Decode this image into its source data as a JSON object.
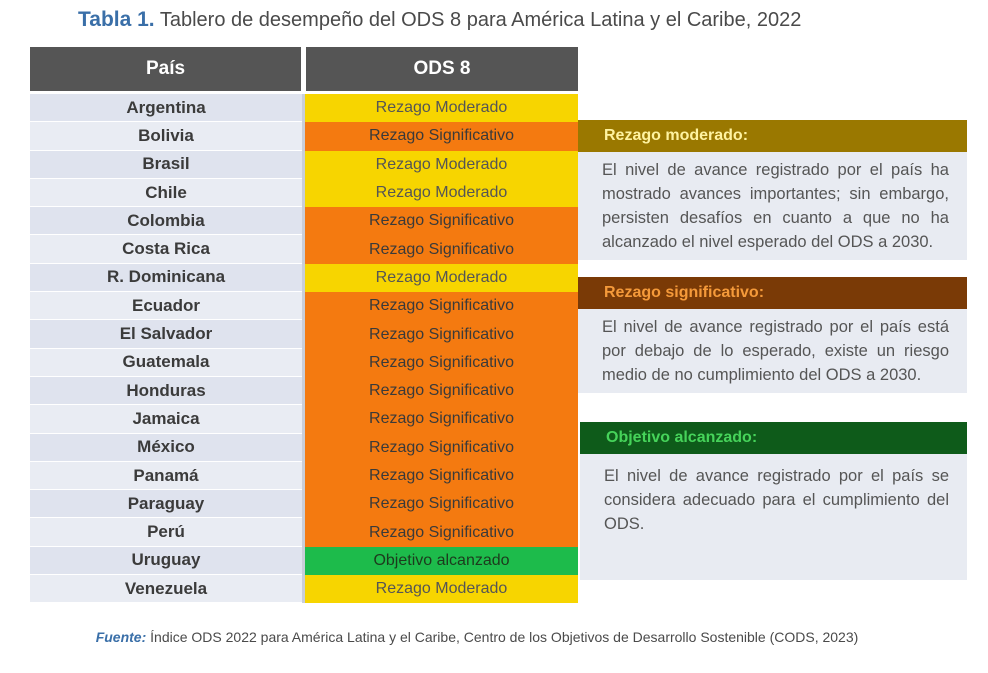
{
  "title": {
    "label": "Tabla 1.",
    "text": "Tablero de desempeño del ODS 8 para América Latina y el Caribe, 2022"
  },
  "table": {
    "headers": {
      "country": "País",
      "ods": "ODS 8"
    },
    "rows": [
      {
        "country": "Argentina",
        "status": "Rezago Moderado",
        "level": "moderado"
      },
      {
        "country": "Bolivia",
        "status": "Rezago Significativo",
        "level": "significativo"
      },
      {
        "country": "Brasil",
        "status": "Rezago Moderado",
        "level": "moderado"
      },
      {
        "country": "Chile",
        "status": "Rezago Moderado",
        "level": "moderado"
      },
      {
        "country": "Colombia",
        "status": "Rezago Significativo",
        "level": "significativo"
      },
      {
        "country": "Costa Rica",
        "status": "Rezago Significativo",
        "level": "significativo"
      },
      {
        "country": "R. Dominicana",
        "status": "Rezago Moderado",
        "level": "moderado"
      },
      {
        "country": "Ecuador",
        "status": "Rezago Significativo",
        "level": "significativo"
      },
      {
        "country": "El Salvador",
        "status": "Rezago Significativo",
        "level": "significativo"
      },
      {
        "country": "Guatemala",
        "status": "Rezago Significativo",
        "level": "significativo"
      },
      {
        "country": "Honduras",
        "status": "Rezago Significativo",
        "level": "significativo"
      },
      {
        "country": "Jamaica",
        "status": "Rezago Significativo",
        "level": "significativo"
      },
      {
        "country": "México",
        "status": "Rezago Significativo",
        "level": "significativo"
      },
      {
        "country": "Panamá",
        "status": "Rezago Significativo",
        "level": "significativo"
      },
      {
        "country": "Paraguay",
        "status": "Rezago Significativo",
        "level": "significativo"
      },
      {
        "country": "Perú",
        "status": "Rezago Significativo",
        "level": "significativo"
      },
      {
        "country": "Uruguay",
        "status": "Objetivo alcanzado",
        "level": "alcanzado"
      },
      {
        "country": "Venezuela",
        "status": "Rezago Moderado",
        "level": "moderado"
      }
    ]
  },
  "legend": {
    "moderado": {
      "title": "Rezago moderado:",
      "text": "El nivel de avance registrado por el país ha mostrado avances importantes; sin embargo, persisten desafíos en cuanto a que no ha alcanzado el nivel esperado del ODS a 2030."
    },
    "significativo": {
      "title": "Rezago significativo:",
      "text": "El nivel de avance registrado por el país está por debajo de lo esperado, existe un riesgo medio de no cumplimiento del ODS a 2030."
    },
    "alcanzado": {
      "title": "Objetivo alcanzado:",
      "text": "El nivel de avance registrado por el país se considera adecuado para el cumplimiento del ODS."
    }
  },
  "colors": {
    "moderado": "#f7d500",
    "significativo": "#f47a10",
    "alcanzado": "#1dbb4b",
    "header": "#555555",
    "title_label": "#3a6fa8"
  },
  "source": {
    "label": "Fuente:",
    "text": "Índice ODS 2022 para América Latina y el Caribe, Centro de los Objetivos de Desarrollo Sostenible (CODS, 2023)"
  }
}
